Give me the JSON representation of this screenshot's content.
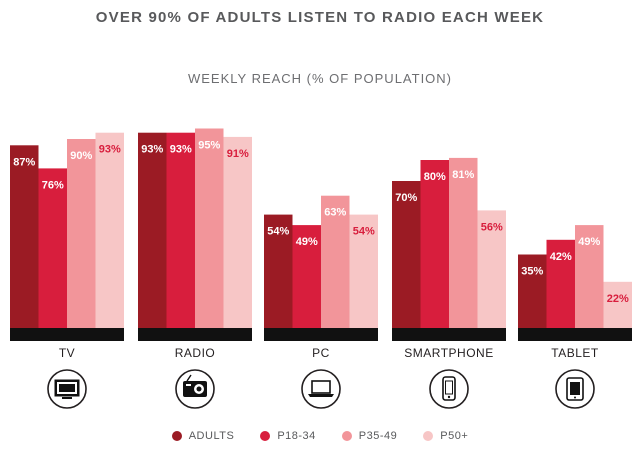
{
  "chart_data": {
    "type": "bar",
    "title": "OVER 90% OF ADULTS LISTEN TO RADIO EACH WEEK",
    "subtitle": "WEEKLY REACH (% OF POPULATION)",
    "categories": [
      "TV",
      "RADIO",
      "PC",
      "SMARTPHONE",
      "TABLET"
    ],
    "icons": [
      "tv-icon",
      "radio-icon",
      "pc-icon",
      "smartphone-icon",
      "tablet-icon"
    ],
    "series": [
      {
        "name": "ADULTS",
        "color": "#9b1b24",
        "values": [
          87,
          93,
          54,
          70,
          35
        ],
        "labels": [
          "87%",
          "93%",
          "54%",
          "70%",
          "35%"
        ]
      },
      {
        "name": "P18-34",
        "color": "#d81e3d",
        "values": [
          76,
          93,
          49,
          80,
          42
        ],
        "labels": [
          "76%",
          "93%",
          "49%",
          "80%",
          "42%"
        ]
      },
      {
        "name": "P35-49",
        "color": "#f2959a",
        "values": [
          90,
          95,
          63,
          81,
          49
        ],
        "labels": [
          "90%",
          "95%",
          "63%",
          "81%",
          "49%"
        ]
      },
      {
        "name": "P50+",
        "color": "#f7c6c6",
        "values": [
          93,
          91,
          54,
          56,
          22
        ],
        "labels": [
          "93%",
          "91%",
          "54%",
          "56%",
          "22%"
        ]
      }
    ],
    "ylim": [
      0,
      100
    ],
    "grid": false,
    "legend_position": "bottom"
  }
}
